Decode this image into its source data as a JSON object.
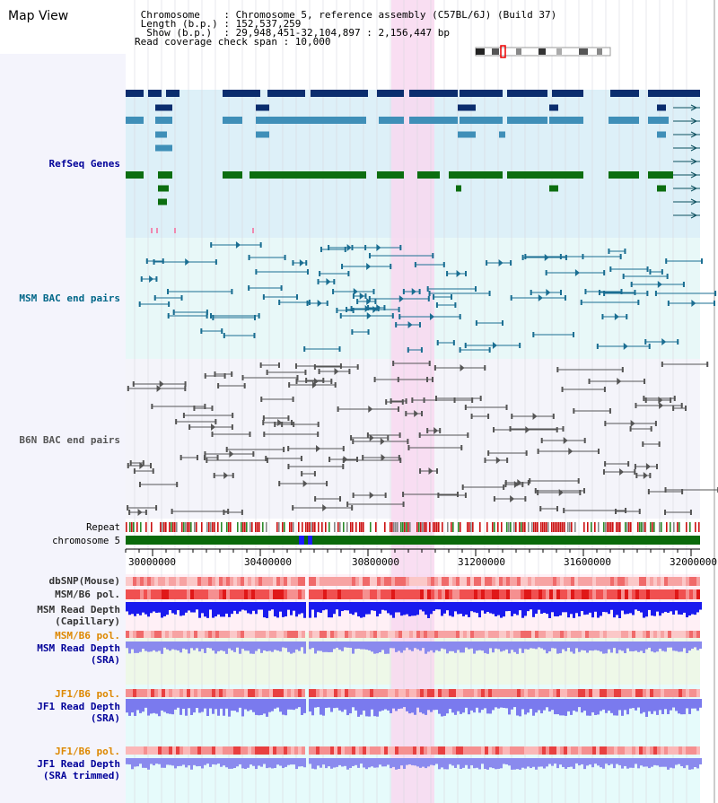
{
  "header": {
    "title": "Map View",
    "info_lines": [
      " Chromosome    : Chromosome 5, reference assembly (C57BL/6J) (Build 37)",
      " Length (b.p.) : 152,537,259",
      "  Show (b.p.)  : 29,948,451-32,104,897 : 2,156,447 bp",
      "Read coverage check span : 10,000"
    ]
  },
  "tracks": {
    "refseq": "RefSeq Genes",
    "msm_bac": "MSM BAC end pairs",
    "b6n_bac": "B6N BAC end pairs",
    "repeat": "Repeat",
    "chromosome": "chromosome 5",
    "dbsnp": "dbSNP(Mouse)",
    "msm_b6_pol": "MSM/B6 pol.",
    "msm_depth_cap_1": "MSM Read Depth",
    "msm_depth_cap_2": "(Capillary)",
    "msm_b6_pol2": "MSM/B6 pol.",
    "msm_depth_sra_1": "MSM Read Depth",
    "msm_depth_sra_2": "(SRA)",
    "jf1_b6_pol": "JF1/B6 pol.",
    "jf1_depth_sra_1": "JF1 Read Depth",
    "jf1_depth_sra_2": "(SRA)",
    "jf1_b6_pol2": "JF1/B6 pol.",
    "jf1_depth_trim_1": "JF1 Read Depth",
    "jf1_depth_trim_2": "(SRA trimmed)"
  },
  "axis": {
    "ticks": [
      "30000000",
      "30400000",
      "30800000",
      "31200000",
      "31600000",
      "32000000"
    ]
  },
  "colors": {
    "refseq_bg": "#ddf0f8",
    "msm_bg": "#e8f8f8",
    "b6n_bg": "#f4f4fa",
    "highlight": "#f8d8f0",
    "gene_dark": "#0a2d6e",
    "gene_mid": "#3f8fb8",
    "gene_green": "#0c6e10",
    "msm_line": "#1a6e92",
    "b6n_line": "#555555",
    "label_blue": "#000099",
    "label_teal": "#006688",
    "label_orange": "#dd8800"
  }
}
